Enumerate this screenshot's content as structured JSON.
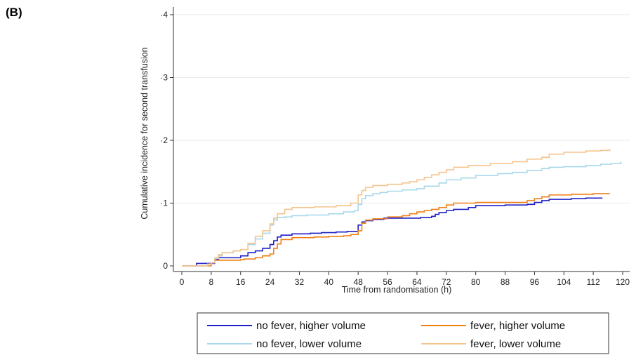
{
  "panel_label": "(B)",
  "chart_data": {
    "type": "line",
    "line_shape": "step",
    "xlabel": "Time from randomisation (h)",
    "ylabel": "Cumulative incidence for second transfusion",
    "xlim": [
      0,
      120
    ],
    "ylim": [
      0,
      0.4
    ],
    "xticks": [
      0,
      8,
      16,
      24,
      32,
      40,
      48,
      56,
      64,
      72,
      80,
      88,
      96,
      104,
      112,
      120
    ],
    "xtick_labels": [
      "0",
      "8",
      "16",
      "24",
      "32",
      "40",
      "48",
      "56",
      "64",
      "72",
      "80",
      "88",
      "96",
      "104",
      "112",
      "120"
    ],
    "yticks": [
      0,
      0.1,
      0.2,
      0.3,
      0.4
    ],
    "ytick_labels": [
      "0",
      "·1",
      "·2",
      "·3",
      "·4"
    ],
    "grid": "horizontal",
    "legend_position": "bottom",
    "series": [
      {
        "name": "no fever, higher volume",
        "color": "#1f1fc8",
        "x": [
          0,
          3,
          4,
          8,
          9,
          10,
          14,
          16,
          18,
          20,
          22,
          24,
          25,
          26,
          27,
          30,
          35,
          38,
          42,
          45,
          47,
          48,
          49,
          50,
          52,
          55,
          60,
          65,
          68,
          69,
          70,
          72,
          74,
          78,
          80,
          88,
          92,
          94,
          96,
          98,
          100,
          106,
          110,
          114.5
        ],
        "y": [
          0,
          0,
          0.004,
          0.004,
          0.01,
          0.013,
          0.013,
          0.016,
          0.021,
          0.024,
          0.028,
          0.034,
          0.04,
          0.046,
          0.049,
          0.051,
          0.052,
          0.053,
          0.054,
          0.055,
          0.055,
          0.065,
          0.07,
          0.072,
          0.074,
          0.076,
          0.076,
          0.077,
          0.079,
          0.082,
          0.085,
          0.088,
          0.09,
          0.093,
          0.096,
          0.097,
          0.097,
          0.098,
          0.101,
          0.104,
          0.106,
          0.107,
          0.108,
          0.108
        ]
      },
      {
        "name": "fever, higher volume",
        "color": "#f07f14",
        "x": [
          0,
          7,
          8,
          9,
          16,
          17,
          20,
          22,
          24,
          25,
          26,
          27,
          30,
          36,
          40,
          44,
          46,
          48,
          49,
          50,
          52,
          56,
          60,
          62,
          64,
          66,
          68,
          70,
          72,
          74,
          80,
          90,
          94,
          96,
          98,
          100,
          106,
          112,
          116.5
        ],
        "y": [
          0,
          0,
          0.005,
          0.009,
          0.01,
          0.011,
          0.013,
          0.016,
          0.019,
          0.028,
          0.035,
          0.042,
          0.045,
          0.046,
          0.047,
          0.048,
          0.05,
          0.056,
          0.068,
          0.073,
          0.075,
          0.078,
          0.08,
          0.083,
          0.086,
          0.088,
          0.09,
          0.093,
          0.097,
          0.1,
          0.101,
          0.101,
          0.104,
          0.107,
          0.11,
          0.113,
          0.114,
          0.115,
          0.115
        ]
      },
      {
        "name": "no fever, lower volume",
        "color": "#a6d8ea",
        "x": [
          0,
          5,
          7,
          8,
          9,
          10,
          11,
          14,
          16,
          18,
          20,
          22,
          24,
          25,
          26,
          28,
          30,
          34,
          40,
          44,
          47,
          48,
          49,
          50,
          52,
          54,
          56,
          60,
          64,
          66,
          70,
          72,
          76,
          80,
          86,
          90,
          94,
          98,
          100,
          104,
          110,
          114,
          117,
          119.5
        ],
        "y": [
          0,
          0,
          0.003,
          0.005,
          0.012,
          0.016,
          0.021,
          0.024,
          0.026,
          0.034,
          0.043,
          0.052,
          0.065,
          0.073,
          0.077,
          0.078,
          0.08,
          0.081,
          0.083,
          0.086,
          0.088,
          0.098,
          0.107,
          0.112,
          0.115,
          0.117,
          0.119,
          0.121,
          0.123,
          0.127,
          0.132,
          0.137,
          0.14,
          0.144,
          0.147,
          0.149,
          0.152,
          0.155,
          0.157,
          0.158,
          0.16,
          0.162,
          0.163,
          0.166
        ]
      },
      {
        "name": "fever, lower volume",
        "color": "#f5c48c",
        "x": [
          0,
          5,
          7,
          8,
          9,
          10,
          11,
          14,
          16,
          18,
          20,
          22,
          24,
          25,
          26,
          28,
          30,
          36,
          42,
          46,
          48,
          49,
          50,
          52,
          56,
          60,
          62,
          64,
          66,
          68,
          70,
          72,
          74,
          78,
          84,
          90,
          94,
          98,
          100,
          104,
          110,
          114,
          116.5
        ],
        "y": [
          0,
          0,
          0.003,
          0.005,
          0.013,
          0.018,
          0.021,
          0.024,
          0.026,
          0.036,
          0.047,
          0.056,
          0.067,
          0.076,
          0.083,
          0.09,
          0.093,
          0.094,
          0.096,
          0.1,
          0.113,
          0.12,
          0.125,
          0.128,
          0.13,
          0.132,
          0.134,
          0.137,
          0.141,
          0.145,
          0.149,
          0.153,
          0.157,
          0.16,
          0.163,
          0.166,
          0.17,
          0.173,
          0.178,
          0.181,
          0.183,
          0.184,
          0.186
        ]
      }
    ]
  }
}
